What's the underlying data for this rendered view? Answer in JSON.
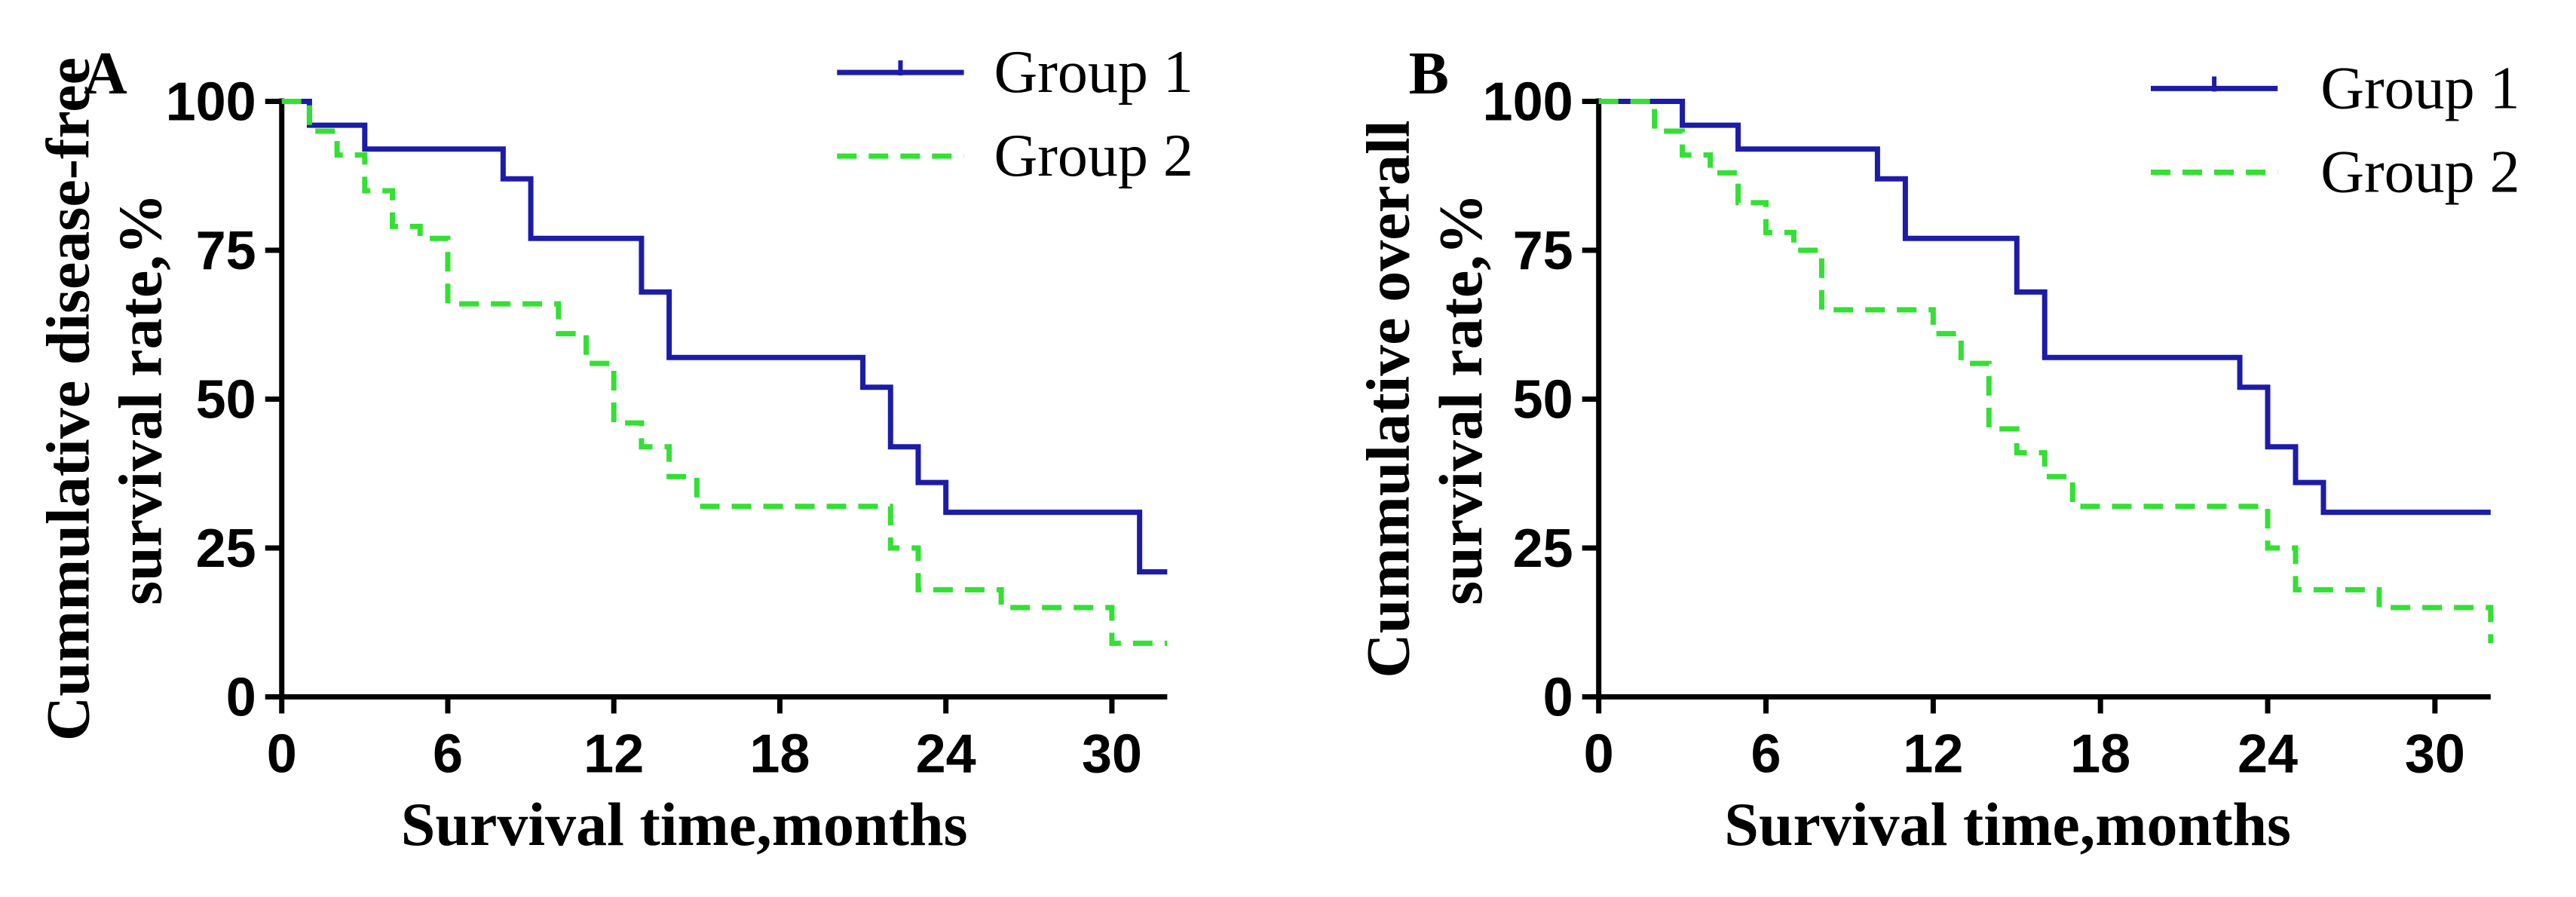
{
  "chart_data": [
    {
      "type": "line",
      "subtype": "kaplan-meier-step",
      "panel_label": "A",
      "ylabel_line1": "Cummulative disease-free",
      "ylabel_line2": "survival rate,%",
      "xlabel": "Survival time,months",
      "xlim": [
        0,
        32
      ],
      "ylim": [
        0,
        100
      ],
      "x_ticks": [
        0,
        6,
        12,
        18,
        24,
        30
      ],
      "y_ticks": [
        0,
        25,
        50,
        75,
        100
      ],
      "legend_position": "top-right",
      "series": [
        {
          "name": "Group 1",
          "color": "#1c1ca8",
          "dash": "solid",
          "x": [
            0,
            1,
            3,
            8,
            9,
            13,
            14,
            21,
            22,
            23,
            24,
            31,
            32
          ],
          "y": [
            100,
            96,
            92,
            87,
            77,
            68,
            57,
            52,
            42,
            36,
            31,
            21,
            21
          ]
        },
        {
          "name": "Group 2",
          "color": "#33e033",
          "dash": "dashed",
          "x": [
            0,
            1,
            2,
            3,
            4,
            5,
            6,
            10,
            11,
            12,
            13,
            14,
            15,
            22,
            23,
            26,
            30,
            32
          ],
          "y": [
            100,
            95,
            91,
            85,
            79,
            77,
            66,
            61,
            56,
            46,
            42,
            37,
            32,
            25,
            18,
            15,
            9,
            9
          ]
        }
      ]
    },
    {
      "type": "line",
      "subtype": "kaplan-meier-step",
      "panel_label": "B",
      "ylabel_line1": "Cummulative overall",
      "ylabel_line2": "survival rate,%",
      "xlabel": "Survival time,months",
      "xlim": [
        0,
        32
      ],
      "ylim": [
        0,
        100
      ],
      "x_ticks": [
        0,
        6,
        12,
        18,
        24,
        30
      ],
      "y_ticks": [
        0,
        25,
        50,
        75,
        100
      ],
      "legend_position": "top-right",
      "series": [
        {
          "name": "Group 1",
          "color": "#1c1ca8",
          "dash": "solid",
          "x": [
            0,
            3,
            5,
            10,
            11,
            15,
            16,
            23,
            24,
            25,
            26,
            32
          ],
          "y": [
            100,
            96,
            92,
            87,
            77,
            68,
            57,
            52,
            42,
            36,
            31,
            31
          ]
        },
        {
          "name": "Group 2",
          "color": "#33e033",
          "dash": "dashed",
          "x": [
            0,
            2,
            3,
            4,
            5,
            6,
            7,
            8,
            12,
            13,
            14,
            15,
            16,
            17,
            24,
            25,
            28,
            32
          ],
          "y": [
            100,
            95,
            91,
            88,
            83,
            78,
            75,
            65,
            61,
            56,
            45,
            41,
            37,
            32,
            25,
            18,
            15,
            9
          ]
        }
      ]
    }
  ]
}
